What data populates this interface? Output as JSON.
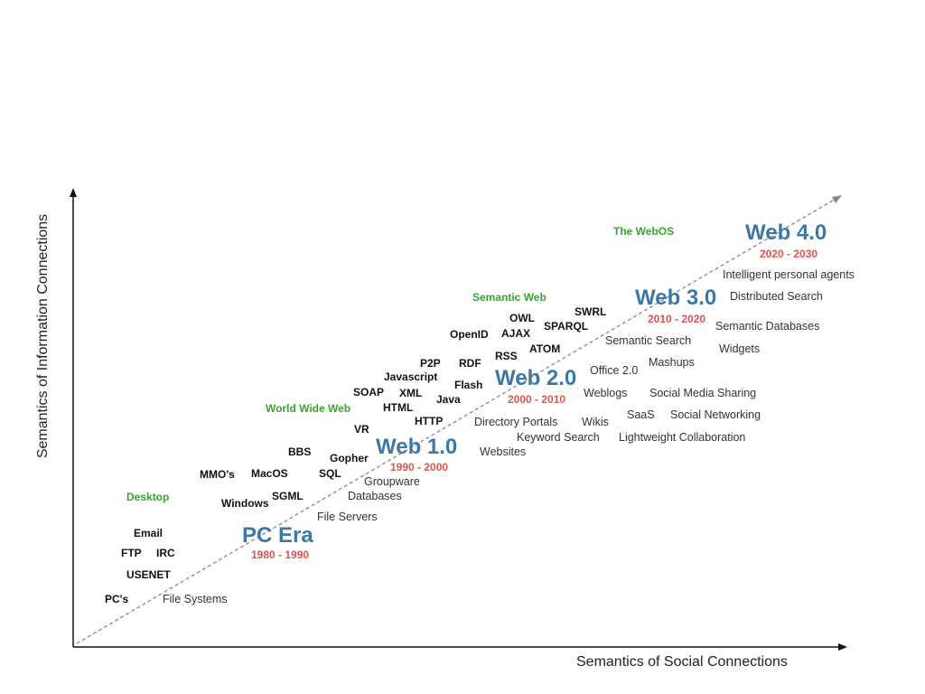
{
  "colors": {
    "era": "#3b78a8",
    "years": "#d9534f",
    "category": "#3aa335",
    "axis": "#111111",
    "trend": "#888888"
  },
  "axes": {
    "x_label": "Semantics of Social Connections",
    "y_label": "Semantics of Information Connections"
  },
  "eras": [
    {
      "name": "PC Era",
      "years": "1980 - 1990"
    },
    {
      "name": "Web 1.0",
      "years": "1990 - 2000"
    },
    {
      "name": "Web 2.0",
      "years": "2000 - 2010"
    },
    {
      "name": "Web 3.0",
      "years": "2010 - 2020"
    },
    {
      "name": "Web 4.0",
      "years": "2020 - 2030"
    }
  ],
  "categories": [
    "Desktop",
    "World Wide Web",
    "Semantic Web",
    "The WebOS"
  ],
  "technologies": [
    "Email",
    "FTP",
    "IRC",
    "USENET",
    "PC's",
    "MMO's",
    "MacOS",
    "Windows",
    "SGML",
    "BBS",
    "Gopher",
    "SQL",
    "VR",
    "SOAP",
    "XML",
    "HTML",
    "Javascript",
    "P2P",
    "RDF",
    "Java",
    "Flash",
    "HTTP",
    "OpenID",
    "AJAX",
    "OWL",
    "RSS",
    "ATOM",
    "SWRL",
    "SPARQL"
  ],
  "applications": [
    "File Systems",
    "File Servers",
    "Databases",
    "Groupware",
    "Websites",
    "Directory Portals",
    "Keyword Search",
    "Wikis",
    "Weblogs",
    "Office 2.0",
    "Mashups",
    "Semantic Search",
    "SaaS",
    "Social Media Sharing",
    "Social Networking",
    "Lightweight Collaboration",
    "Widgets",
    "Semantic Databases",
    "Distributed Search",
    "Intelligent personal agents"
  ]
}
